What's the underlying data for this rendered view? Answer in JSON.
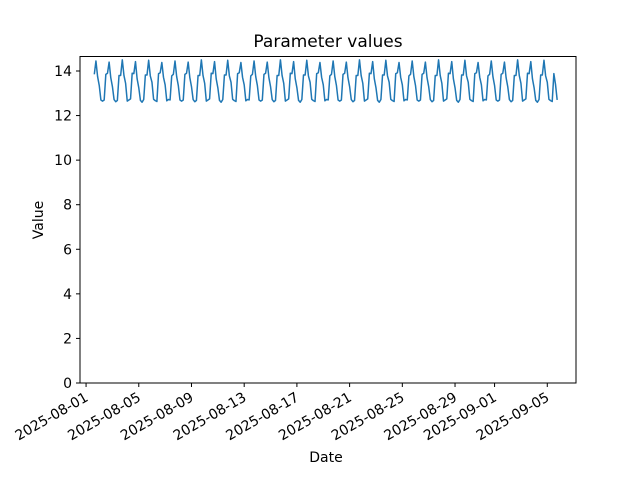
{
  "figure": {
    "background_color": "#ffffff",
    "axes_edge_color": "#000000",
    "text_color": "#000000"
  },
  "chart_data": {
    "type": "line",
    "title": "Parameter values",
    "xlabel": "Date",
    "ylabel": "Value",
    "line_color": "#1f77b4",
    "grid": false,
    "legend": "none",
    "ylim": [
      0,
      14.65
    ],
    "yticks": [
      0,
      2,
      4,
      6,
      8,
      10,
      12,
      14
    ],
    "x_epoch": "2025-08-01",
    "xlim_days": [
      -0.46,
      37.18
    ],
    "xticks": [
      {
        "day": 0,
        "label": "2025-08-01"
      },
      {
        "day": 4,
        "label": "2025-08-05"
      },
      {
        "day": 8,
        "label": "2025-08-09"
      },
      {
        "day": 12,
        "label": "2025-08-13"
      },
      {
        "day": 16,
        "label": "2025-08-17"
      },
      {
        "day": 20,
        "label": "2025-08-21"
      },
      {
        "day": 24,
        "label": "2025-08-25"
      },
      {
        "day": 28,
        "label": "2025-08-29"
      },
      {
        "day": 31,
        "label": "2025-09-01"
      },
      {
        "day": 35,
        "label": "2025-09-05"
      }
    ],
    "x_start_day": 0.625,
    "x_step_days": 0.125,
    "value_range_observed": [
      12.6,
      14.5
    ],
    "daily_values": [
      [
        13.85,
        14.45,
        13.75,
        13.35,
        12.7,
        12.65,
        12.7,
        13.85
      ],
      [
        13.9,
        14.4,
        13.7,
        13.3,
        12.72,
        12.62,
        12.68,
        13.8
      ],
      [
        13.8,
        14.5,
        13.8,
        13.45,
        12.65,
        12.7,
        12.75,
        13.9
      ],
      [
        13.88,
        14.42,
        13.65,
        13.25,
        12.68,
        12.6,
        12.72,
        13.82
      ],
      [
        13.82,
        14.48,
        13.78,
        13.5,
        12.73,
        12.67,
        12.63,
        13.88
      ],
      [
        13.92,
        14.38,
        13.72,
        13.38,
        12.66,
        12.72,
        12.7,
        13.78
      ],
      [
        13.85,
        14.45,
        13.75,
        13.35,
        12.7,
        12.65,
        12.7,
        13.85
      ],
      [
        13.9,
        14.4,
        13.7,
        13.3,
        12.72,
        12.62,
        12.68,
        13.8
      ],
      [
        13.8,
        14.5,
        13.8,
        13.45,
        12.65,
        12.7,
        12.75,
        13.9
      ],
      [
        13.88,
        14.42,
        13.65,
        13.25,
        12.68,
        12.6,
        12.72,
        13.82
      ],
      [
        13.82,
        14.48,
        13.78,
        13.5,
        12.73,
        12.67,
        12.63,
        13.88
      ],
      [
        13.92,
        14.38,
        13.72,
        13.38,
        12.66,
        12.72,
        12.7,
        13.78
      ],
      [
        13.85,
        14.45,
        13.75,
        13.35,
        12.7,
        12.65,
        12.7,
        13.85
      ],
      [
        13.9,
        14.4,
        13.7,
        13.3,
        12.72,
        12.62,
        12.68,
        13.8
      ],
      [
        13.8,
        14.5,
        13.8,
        13.45,
        12.65,
        12.7,
        12.75,
        13.9
      ],
      [
        13.88,
        14.42,
        13.65,
        13.25,
        12.68,
        12.6,
        12.72,
        13.82
      ],
      [
        13.82,
        14.48,
        13.78,
        13.5,
        12.73,
        12.67,
        12.63,
        13.88
      ],
      [
        13.92,
        14.38,
        13.72,
        13.38,
        12.66,
        12.72,
        12.7,
        13.78
      ],
      [
        13.85,
        14.45,
        13.75,
        13.35,
        12.7,
        12.65,
        12.7,
        13.85
      ],
      [
        13.9,
        14.4,
        13.7,
        13.3,
        12.72,
        12.62,
        12.68,
        13.8
      ],
      [
        13.8,
        14.5,
        13.8,
        13.45,
        12.65,
        12.7,
        12.75,
        13.9
      ],
      [
        13.88,
        14.42,
        13.65,
        13.25,
        12.68,
        12.6,
        12.72,
        13.82
      ],
      [
        13.82,
        14.48,
        13.78,
        13.5,
        12.73,
        12.67,
        12.63,
        13.88
      ],
      [
        13.92,
        14.38,
        13.72,
        13.38,
        12.66,
        12.72,
        12.7,
        13.78
      ],
      [
        13.85,
        14.45,
        13.75,
        13.35,
        12.7,
        12.65,
        12.7,
        13.85
      ],
      [
        13.9,
        14.4,
        13.7,
        13.3,
        12.72,
        12.62,
        12.68,
        13.8
      ],
      [
        13.8,
        14.5,
        13.8,
        13.45,
        12.65,
        12.7,
        12.75,
        13.9
      ],
      [
        13.88,
        14.42,
        13.65,
        13.25,
        12.68,
        12.6,
        12.72,
        13.82
      ],
      [
        13.82,
        14.48,
        13.78,
        13.5,
        12.73,
        12.67,
        12.63,
        13.88
      ],
      [
        13.92,
        14.38,
        13.72,
        13.38,
        12.66,
        12.72,
        12.7,
        13.78
      ],
      [
        13.85,
        14.45,
        13.75,
        13.35,
        12.7,
        12.65,
        12.7,
        13.85
      ],
      [
        13.9,
        14.4,
        13.7,
        13.3,
        12.72,
        12.62,
        12.68,
        13.8
      ],
      [
        13.8,
        14.5,
        13.8,
        13.45,
        12.65,
        12.7,
        12.75,
        13.9
      ],
      [
        13.88,
        14.42,
        13.65,
        13.25,
        12.68,
        12.6,
        12.72,
        13.82
      ],
      [
        13.82,
        14.48,
        13.78,
        13.5,
        12.73,
        12.67,
        12.63,
        13.88
      ]
    ],
    "tail_values": [
      13.4,
      12.7
    ]
  }
}
